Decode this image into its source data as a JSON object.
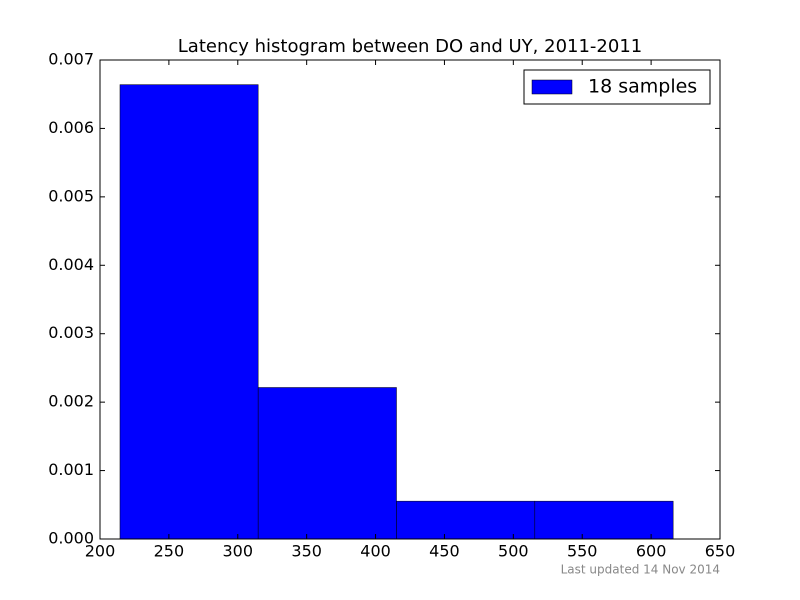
{
  "chart_data": {
    "type": "histogram",
    "title": "Latency histogram between DO and UY, 2011-2011",
    "bins": [
      214.5,
      314.8,
      415.2,
      515.6,
      616
    ],
    "series": [
      {
        "name": "18 samples",
        "color": "#0000ff",
        "values": [
          0.00664,
          0.002214,
          0.000553,
          0.000553
        ]
      }
    ],
    "xlim": [
      200,
      650
    ],
    "xticks": [
      200,
      250,
      300,
      350,
      400,
      450,
      500,
      550,
      600,
      650
    ],
    "ylim": [
      0,
      0.007
    ],
    "yticks": [
      {
        "value": 0,
        "label": "0.000"
      },
      {
        "value": 0.001,
        "label": "0.001"
      },
      {
        "value": 0.002,
        "label": "0.002"
      },
      {
        "value": 0.003,
        "label": "0.003"
      },
      {
        "value": 0.004,
        "label": "0.004"
      },
      {
        "value": 0.005,
        "label": "0.005"
      },
      {
        "value": 0.006,
        "label": "0.006"
      },
      {
        "value": 0.007,
        "label": "0.007"
      }
    ],
    "legend": "upper right",
    "footnote": "Last updated 14 Nov 2014"
  }
}
